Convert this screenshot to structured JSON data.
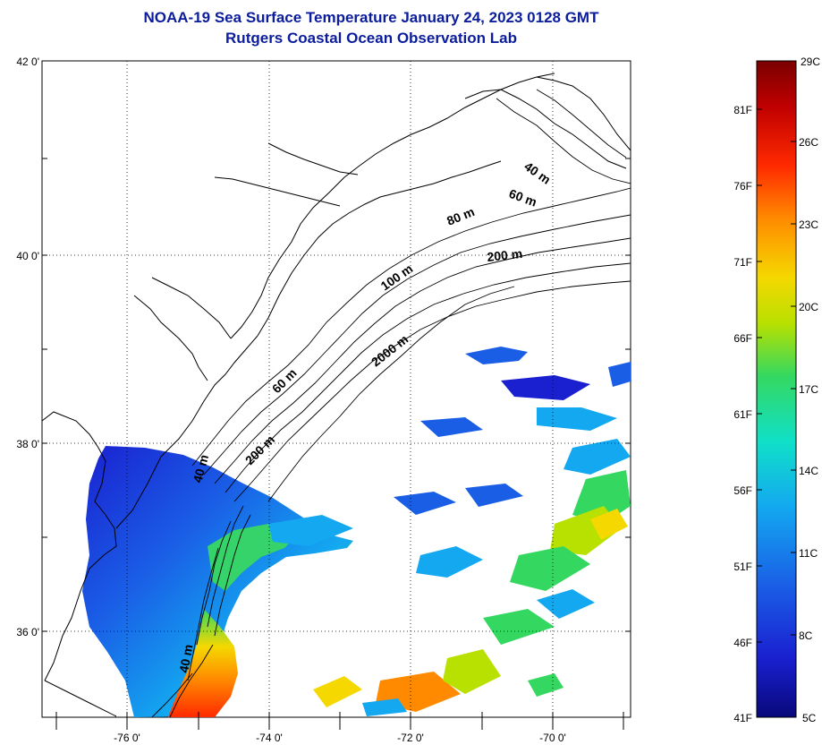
{
  "title": {
    "line1": "NOAA-19 Sea Surface Temperature January 24, 2023 0128 GMT",
    "line2": "Rutgers Coastal Ocean Observation Lab"
  },
  "map": {
    "lat_labels": [
      "42 0'",
      "40 0'",
      "38 0'",
      "36 0'"
    ],
    "lon_labels": [
      "-76 0'",
      "-74 0'",
      "-72 0'",
      "-70 0'"
    ],
    "isobath_labels": [
      "40 m",
      "60 m",
      "80 m",
      "200 m",
      "100 m",
      "2000 m",
      "60 m",
      "200 m",
      "40 m",
      "40 m"
    ]
  },
  "colorbar": {
    "celsius_labels": [
      "29C",
      "26C",
      "23C",
      "20C",
      "17C",
      "14C",
      "11C",
      "8C",
      "5C"
    ],
    "fahrenheit_labels": [
      "81F",
      "76F",
      "71F",
      "66F",
      "61F",
      "56F",
      "51F",
      "46F",
      "41F"
    ],
    "colors": [
      "#7a0000",
      "#c00000",
      "#ff2a00",
      "#ff8a00",
      "#f5d800",
      "#b8e000",
      "#34d860",
      "#10e0c8",
      "#13a8f0",
      "#1a5ee6",
      "#1a20d0",
      "#08087a"
    ]
  }
}
